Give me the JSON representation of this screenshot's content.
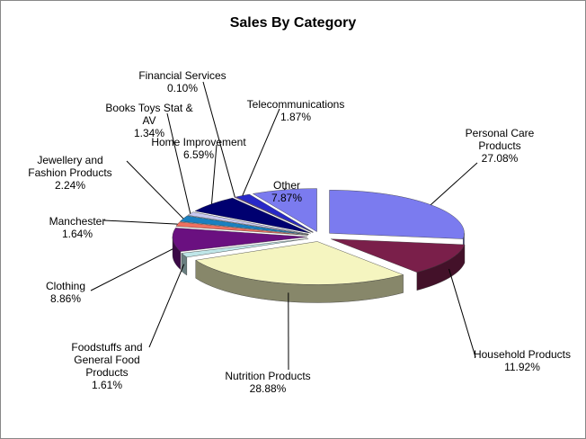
{
  "chart_data": {
    "type": "pie3d",
    "title": "Sales By Category",
    "categories": [
      "Personal Care Products",
      "Household Products",
      "Nutrition Products",
      "Foodstuffs and General Food Products",
      "Clothing",
      "Manchester",
      "Jewellery and Fashion Products",
      "Books Toys Stat & AV",
      "Home Improvement",
      "Financial Services",
      "Telecommunications",
      "Other"
    ],
    "values": [
      27.08,
      11.92,
      28.88,
      1.61,
      8.86,
      1.64,
      2.24,
      1.34,
      6.59,
      0.1,
      1.87,
      7.87
    ],
    "value_labels": [
      "27.08%",
      "11.92%",
      "28.88%",
      "1.61%",
      "8.86%",
      "1.64%",
      "2.24%",
      "1.34%",
      "6.59%",
      "0.10%",
      "1.87%",
      "7.87%"
    ],
    "colors": [
      "#7b7bef",
      "#7a1f4a",
      "#f5f5c0",
      "#bfe6e8",
      "#6a1080",
      "#f07060",
      "#1a80c0",
      "#c8c8f0",
      "#000070",
      "#ff00ff",
      "#2828c8",
      "#7b7bef"
    ]
  }
}
